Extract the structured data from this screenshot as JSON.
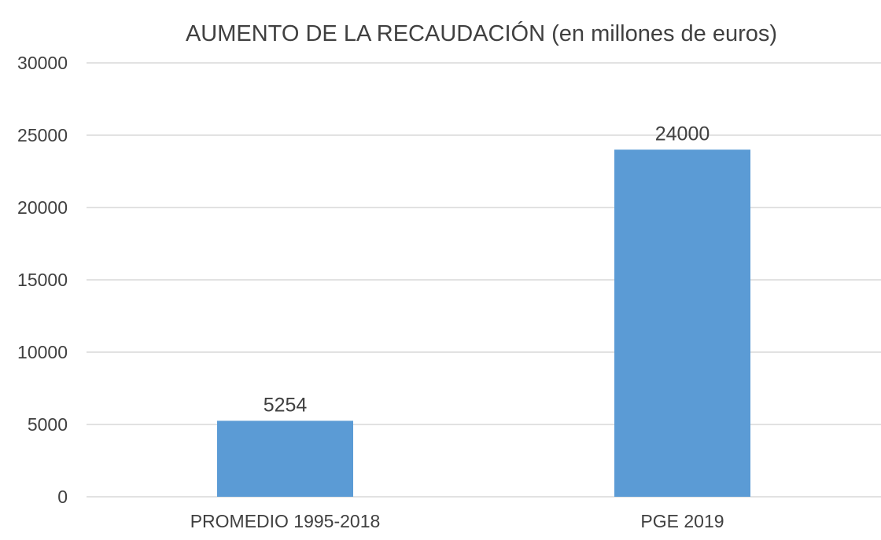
{
  "chart_data": {
    "type": "bar",
    "title": "AUMENTO DE LA RECAUDACIÓN (en millones de euros)",
    "categories": [
      "PROMEDIO 1995-2018",
      "PGE 2019"
    ],
    "values": [
      5254,
      24000
    ],
    "data_labels": [
      "5254",
      "24000"
    ],
    "ylim": [
      0,
      30000
    ],
    "yticks": [
      0,
      5000,
      10000,
      15000,
      20000,
      25000,
      30000
    ],
    "ytick_labels": [
      "0",
      "5000",
      "10000",
      "15000",
      "20000",
      "25000",
      "30000"
    ],
    "grid": true,
    "legend": "none",
    "bar_color": "#5b9bd5",
    "gridline_color": "#d9d9d9",
    "text_color": "#404040"
  }
}
